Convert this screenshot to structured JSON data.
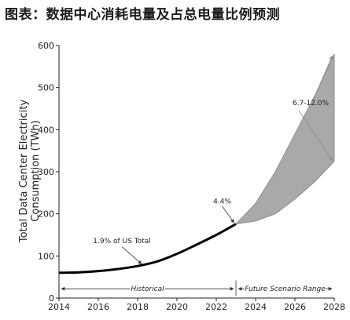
{
  "header": {
    "title": "图表：数据中心消耗电量及占总电量比例预测"
  },
  "chart_data": {
    "type": "line",
    "title": "",
    "xlabel": "",
    "ylabel_line1": "Total Data Center Electricity",
    "ylabel_line2": "Consumption (TWh)",
    "xlim": [
      2014,
      2028
    ],
    "ylim": [
      0,
      600
    ],
    "x_ticks": [
      "2014",
      "2016",
      "2018",
      "2020",
      "2022",
      "2024",
      "2026",
      "2028"
    ],
    "y_ticks": [
      "0",
      "100",
      "200",
      "300",
      "400",
      "500",
      "600"
    ],
    "series": [
      {
        "x": [
          2014,
          2015,
          2016,
          2017,
          2018,
          2019,
          2020,
          2021,
          2022,
          2023
        ],
        "values": [
          60,
          61,
          64,
          69,
          76,
          87,
          105,
          127,
          150,
          176
        ]
      }
    ],
    "scenario_band": {
      "x": [
        2023,
        2024,
        2025,
        2026,
        2027,
        2028
      ],
      "upper": [
        176,
        225,
        300,
        390,
        480,
        580
      ],
      "lower": [
        176,
        183,
        200,
        235,
        276,
        325
      ],
      "color": "#a9a9a9"
    },
    "annotations": {
      "us_share_2018": "1.9% of US Total",
      "us_share_2023": "4.4%",
      "us_share_2028": "6.7-12.0%",
      "historical": "Historical",
      "future": "Future Scenario Range"
    }
  }
}
